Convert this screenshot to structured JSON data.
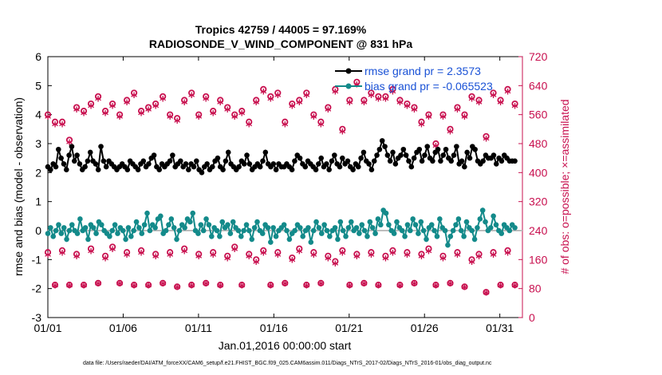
{
  "chart_data": {
    "type": "line",
    "title_line1": "Tropics 42759 / 44005 = 97.169%",
    "title_line2": "RADIOSONDE_V_WIND_COMPONENT @ 831 hPa",
    "xlabel": "Jan.01,2016 00:00:00 start",
    "ylabel_left": "rmse and bias (model - observation)",
    "ylabel_right": "# of obs: o=possible; ×=assimilated",
    "xlim": [
      0,
      31.5
    ],
    "ylim_left": [
      -3,
      6
    ],
    "ylim_right": [
      0,
      720
    ],
    "x_ticks": [
      0,
      5,
      10,
      15,
      20,
      25,
      30
    ],
    "x_tick_labels": [
      "01/01",
      "01/06",
      "01/11",
      "01/16",
      "01/21",
      "01/26",
      "01/31"
    ],
    "y_ticks_left": [
      -3,
      -2,
      -1,
      0,
      1,
      2,
      3,
      4,
      5,
      6
    ],
    "y_ticks_left_labels": [
      "-3",
      "-2",
      "-1",
      "0",
      "1",
      "2",
      "3",
      "4",
      "5",
      "6"
    ],
    "y_ticks_right": [
      0,
      80,
      160,
      240,
      320,
      400,
      480,
      560,
      640,
      720
    ],
    "y_ticks_right_labels": [
      "0",
      "80",
      "160",
      "240",
      "320",
      "400",
      "480",
      "560",
      "640",
      "720"
    ],
    "legend": [
      {
        "name": "rmse grand pr = 2.3573",
        "color": "#000000"
      },
      {
        "name": "bias grand pr = -0.065523",
        "color": "#138a8a"
      }
    ],
    "colors": {
      "rmse": "#000000",
      "bias": "#138a8a",
      "obs": "#c8104f",
      "zero": "#bdbdbd"
    },
    "rmse_series": [
      2.2,
      2.1,
      2.3,
      2.2,
      2.8,
      2.5,
      2.3,
      2.1,
      2.6,
      2.9,
      2.4,
      2.6,
      2.3,
      2.1,
      2.2,
      2.4,
      2.7,
      2.4,
      2.3,
      2.1,
      2.9,
      2.4,
      2.2,
      2.4,
      2.3,
      2.2,
      2.1,
      2.2,
      2.3,
      2.2,
      2.1,
      2.4,
      2.3,
      2.2,
      2.1,
      2.3,
      2.4,
      2.2,
      2.3,
      2.5,
      2.6,
      2.2,
      2.1,
      2.3,
      2.2,
      2.3,
      2.4,
      2.6,
      2.2,
      2.3,
      2.4,
      2.2,
      2.3,
      2.1,
      2.3,
      2.2,
      2.4,
      2.1,
      2.0,
      2.2,
      2.3,
      2.1,
      2.2,
      2.4,
      2.5,
      2.2,
      2.1,
      2.4,
      2.7,
      2.3,
      2.2,
      2.1,
      2.2,
      2.4,
      2.3,
      2.6,
      2.3,
      2.1,
      2.2,
      2.3,
      2.2,
      2.4,
      2.7,
      2.3,
      2.2,
      2.3,
      2.1,
      2.3,
      2.2,
      2.2,
      2.3,
      2.2,
      2.1,
      2.4,
      2.6,
      2.5,
      2.3,
      2.2,
      2.4,
      2.3,
      2.2,
      2.1,
      2.3,
      2.5,
      2.2,
      2.3,
      2.1,
      2.4,
      2.6,
      2.3,
      2.2,
      2.5,
      2.3,
      2.4,
      2.2,
      2.1,
      2.3,
      2.2,
      2.5,
      2.7,
      2.4,
      2.3,
      2.1,
      2.4,
      2.6,
      2.8,
      3.1,
      2.9,
      2.6,
      2.4,
      2.7,
      2.3,
      2.5,
      2.6,
      2.8,
      2.6,
      2.4,
      2.2,
      2.5,
      2.7,
      2.8,
      2.4,
      2.6,
      2.9,
      2.5,
      2.4,
      2.7,
      2.8,
      2.4,
      2.6,
      2.8,
      2.5,
      2.4,
      2.6,
      2.9,
      2.3,
      2.4,
      2.2,
      2.7,
      2.5,
      2.9,
      2.8,
      2.4,
      2.3,
      2.4,
      2.6,
      2.5,
      2.5,
      2.6,
      2.3,
      2.5,
      2.4,
      2.6,
      2.5,
      2.4,
      2.4,
      2.4
    ],
    "bias_series": [
      -0.1,
      0.1,
      -0.2,
      0.0,
      0.2,
      -0.1,
      0.1,
      -0.3,
      0.0,
      0.2,
      0.0,
      -0.1,
      0.4,
      0.0,
      0.1,
      -0.3,
      0.2,
      0.1,
      -0.1,
      0.3,
      0.2,
      0.0,
      -0.1,
      -0.2,
      0.0,
      0.2,
      -0.1,
      0.1,
      0.0,
      -0.3,
      0.1,
      -0.2,
      0.0,
      0.3,
      0.1,
      -0.1,
      0.2,
      0.6,
      0.0,
      0.2,
      0.1,
      0.4,
      0.5,
      -0.1,
      0.0,
      0.2,
      0.4,
      0.1,
      -0.3,
      0.0,
      0.2,
      0.1,
      0.4,
      0.3,
      0.6,
      0.0,
      -0.1,
      0.2,
      0.0,
      0.4,
      0.2,
      -0.2,
      0.1,
      0.0,
      -0.2,
      0.3,
      0.1,
      0.2,
      -0.1,
      0.3,
      0.1,
      0.0,
      -0.2,
      0.0,
      0.2,
      0.0,
      -0.3,
      0.1,
      0.3,
      0.0,
      -0.1,
      0.2,
      0.1,
      -0.4,
      0.1,
      -0.2,
      0.0,
      0.1,
      0.2,
      0.0,
      -0.3,
      -0.1,
      0.0,
      0.2,
      0.1,
      -0.2,
      0.0,
      0.1,
      -0.4,
      0.0,
      0.3,
      0.1,
      -0.1,
      0.2,
      0.0,
      -0.2,
      0.0,
      0.1,
      -0.3,
      0.3,
      0.0,
      -0.2,
      0.1,
      0.3,
      0.0,
      0.1,
      -0.1,
      0.2,
      0.0,
      -0.2,
      0.3,
      0.1,
      -0.1,
      0.4,
      0.2,
      0.7,
      0.6,
      0.2,
      0.0,
      -0.1,
      0.3,
      0.1,
      0.0,
      -0.2,
      0.2,
      0.0,
      0.4,
      0.2,
      -0.1,
      0.3,
      0.0,
      -0.3,
      0.1,
      0.2,
      0.0,
      -0.2,
      0.4,
      0.1,
      0.0,
      -0.5,
      -0.2,
      0.0,
      0.2,
      0.4,
      0.0,
      -0.2,
      0.3,
      0.1,
      0.0,
      -0.3,
      0.1,
      0.4,
      0.7,
      0.3,
      0.0,
      0.1,
      0.5,
      0.2,
      0.0,
      -0.1,
      0.2,
      0.1,
      0.0,
      0.2,
      0.1
    ],
    "obs_possible_top": [
      560,
      540,
      540,
      490,
      580,
      570,
      590,
      610,
      570,
      590,
      560,
      600,
      620,
      570,
      580,
      590,
      610,
      560,
      550,
      600,
      620,
      560,
      610,
      570,
      600,
      580,
      560,
      570,
      540,
      600,
      630,
      610,
      620,
      540,
      590,
      600,
      620,
      560,
      540,
      580,
      630,
      520,
      600,
      650,
      600,
      620,
      610,
      610,
      630,
      600,
      590,
      580,
      540,
      560,
      480,
      560,
      520,
      580,
      560,
      610,
      600,
      500,
      620,
      600,
      630,
      590
    ],
    "obs_assimilated_top": [
      550,
      530,
      530,
      480,
      570,
      560,
      580,
      600,
      560,
      580,
      550,
      590,
      610,
      560,
      570,
      580,
      600,
      550,
      540,
      590,
      610,
      550,
      600,
      560,
      590,
      570,
      550,
      560,
      530,
      590,
      620,
      600,
      610,
      530,
      580,
      590,
      610,
      550,
      530,
      570,
      620,
      510,
      590,
      640,
      590,
      610,
      600,
      600,
      620,
      590,
      580,
      570,
      530,
      550,
      470,
      550,
      510,
      570,
      550,
      600,
      590,
      490,
      610,
      590,
      620,
      580
    ],
    "obs_possible_bottom": [
      180,
      90,
      185,
      90,
      175,
      90,
      190,
      95,
      170,
      195,
      95,
      180,
      90,
      185,
      90,
      175,
      95,
      180,
      85,
      190,
      90,
      175,
      95,
      180,
      90,
      170,
      195,
      90,
      175,
      160,
      185,
      90,
      180,
      95,
      165,
      190,
      90,
      180,
      95,
      170,
      155,
      185,
      90,
      175,
      95,
      180,
      90,
      170,
      185,
      90,
      180,
      95,
      175,
      190,
      90,
      170,
      95,
      180,
      85,
      160,
      175,
      70,
      180,
      90,
      185,
      90
    ],
    "obs_assimilated_bottom": [
      170,
      85,
      175,
      85,
      165,
      85,
      180,
      90,
      160,
      185,
      90,
      170,
      85,
      175,
      85,
      165,
      90,
      170,
      80,
      180,
      85,
      165,
      90,
      170,
      85,
      160,
      185,
      85,
      165,
      150,
      175,
      85,
      170,
      90,
      155,
      180,
      85,
      170,
      90,
      160,
      145,
      175,
      85,
      165,
      90,
      170,
      85,
      160,
      175,
      85,
      170,
      90,
      165,
      180,
      85,
      160,
      90,
      170,
      80,
      150,
      165,
      65,
      170,
      85,
      175,
      85
    ],
    "footer": "data file: /Users/raeder/DAI/ATM_forceXX/CAM6_setup/f.e21.FHIST_BGC.f09_025.CAM6assim.011/Diags_NTrS_2017-02/Diags_NTrS_2016-01/obs_diag_output.nc"
  }
}
